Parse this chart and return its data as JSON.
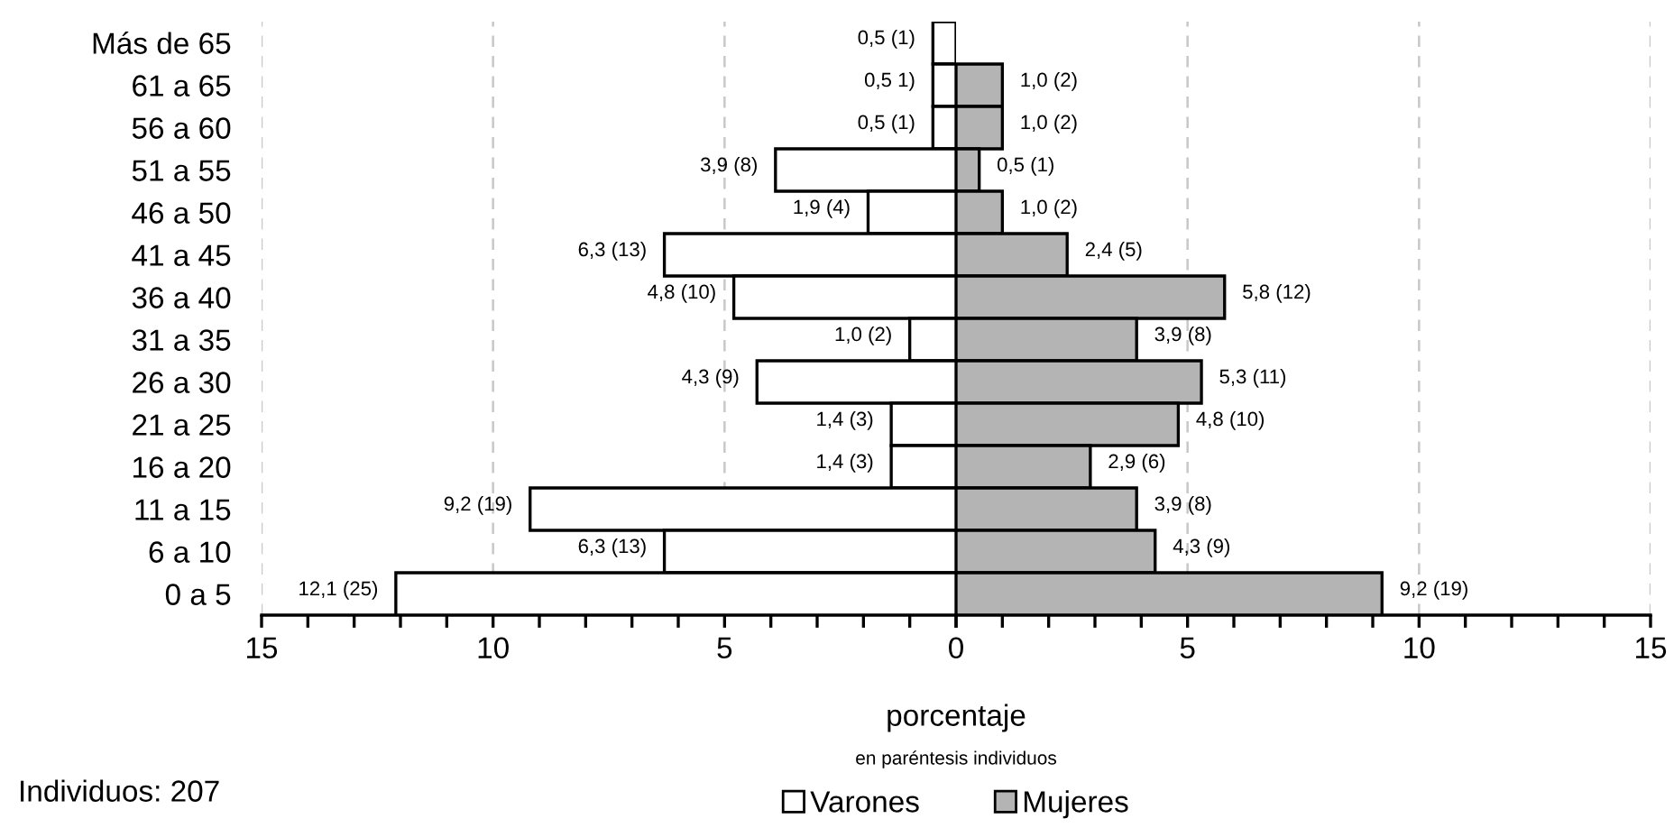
{
  "chart_data": [
    {
      "type": "bar",
      "orientation": "horizontal",
      "categories": [
        "Más de 65",
        "61 a 65",
        "56 a 60",
        "51 a 55",
        "46 a 50",
        "41 a 45",
        "36 a 40",
        "31 a 35",
        "26 a 30",
        "21 a 25",
        "16 a 20",
        "11 a 15",
        "6 a 10",
        "0 a 5"
      ],
      "series": [
        {
          "name": "Varones",
          "color": "#ffffff",
          "values": [
            0.5,
            0.5,
            0.5,
            3.9,
            1.9,
            6.3,
            4.8,
            1.0,
            4.3,
            1.4,
            1.4,
            9.2,
            6.3,
            12.1
          ],
          "value_labels": [
            "0,5 (1)",
            "0,5 1)",
            "0,5 (1)",
            "3,9 (8)",
            "1,9 (4)",
            "6,3 (13)",
            "4,8 (10)",
            "1,0 (2)",
            "4,3 (9)",
            "1,4 (3)",
            "1,4 (3)",
            "9,2 (19)",
            "6,3 (13)",
            "12,1 (25)"
          ]
        }
      ],
      "xlim": [
        15,
        0
      ],
      "xticks": [
        15,
        {
          "value": 14,
          "label": null
        },
        {
          "value": 13,
          "label": null
        },
        {
          "value": 12,
          "label": null
        },
        {
          "value": 11,
          "label": null
        },
        10,
        {
          "value": 9,
          "label": null
        },
        {
          "value": 8,
          "label": null
        },
        {
          "value": 7,
          "label": null
        },
        {
          "value": 6,
          "label": null
        },
        5,
        {
          "value": 4,
          "label": null
        },
        {
          "value": 3,
          "label": null
        },
        {
          "value": 2,
          "label": null
        },
        {
          "value": 1,
          "label": null
        },
        0
      ],
      "xlabel": "porcentaje",
      "annotations": [
        "en paréntesis individuos",
        "Individuos: 207"
      ],
      "grid": "x",
      "legend": "bottom"
    },
    {
      "type": "bar",
      "orientation": "horizontal",
      "series": [
        {
          "name": "Mujeres",
          "color": "#b4b4b4",
          "values": [
            null,
            1.0,
            1.0,
            0.5,
            1.0,
            2.4,
            5.8,
            3.9,
            5.3,
            4.8,
            2.9,
            3.9,
            4.3,
            9.2
          ],
          "value_labels": [
            null,
            "1,0 (2)",
            "1,0 (2)",
            "0,5 (1)",
            "1,0 (2)",
            "2,4 (5)",
            "5,8 (12)",
            "3,9 (8)",
            "5,3 (11)",
            "4,8 (10)",
            "2,9 (6)",
            "3,9 (8)",
            "4,3 (9)",
            "9,2 (19)"
          ]
        }
      ],
      "xlim": [
        0,
        15
      ],
      "categories": [
        null,
        null,
        null,
        null,
        null,
        null,
        null,
        null,
        null,
        null,
        null,
        null,
        null,
        null
      ],
      "xticks": [
        {
          "value": 0,
          "label": null
        },
        {
          "value": 1,
          "label": null
        },
        {
          "value": 2,
          "label": null
        },
        {
          "value": 3,
          "label": null
        },
        {
          "value": 4,
          "label": null
        },
        5,
        {
          "value": 6,
          "label": null
        },
        {
          "value": 7,
          "label": null
        },
        {
          "value": 8,
          "label": null
        },
        {
          "value": 9,
          "label": null
        },
        10,
        {
          "value": 11,
          "label": null
        },
        {
          "value": 12,
          "label": null
        },
        {
          "value": 13,
          "label": null
        },
        {
          "value": 14,
          "label": null
        },
        15
      ],
      "grid": "x",
      "legend": "bottom"
    }
  ]
}
